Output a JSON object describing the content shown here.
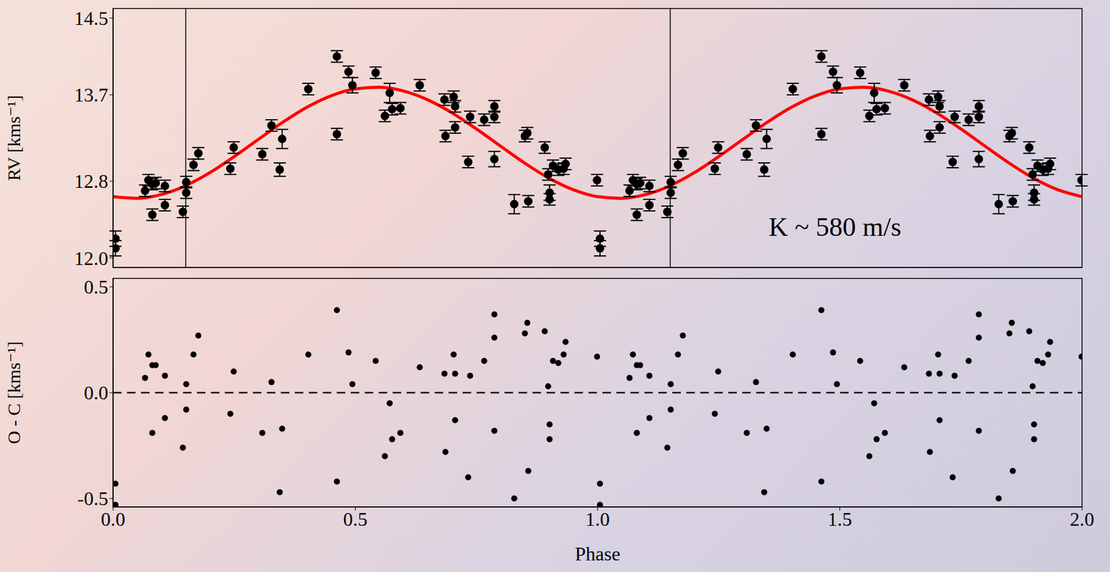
{
  "chart_data": [
    {
      "type": "scatter",
      "ylabel": "RV [kms⁻¹]",
      "xlim": [
        0,
        2
      ],
      "xticks": [
        {
          "value": 0,
          "label": "0.0"
        },
        0.5,
        {
          "value": 1,
          "label": "1.0"
        },
        1.5,
        {
          "value": 2,
          "label": "2.0"
        }
      ],
      "ylim": [
        11.9,
        14.6
      ],
      "yticks": [
        {
          "value": 12,
          "label": "12.0"
        },
        12.8,
        13.7,
        14.5
      ],
      "tick_labels": "y",
      "vlines": [
        0.15,
        1.15
      ],
      "annotations": [
        {
          "text": "K ~ 580 m/s",
          "x": 1.49,
          "y": 12.33
        }
      ],
      "series": [
        {
          "type": "line",
          "color": "#ff0000",
          "line_style": "solid",
          "x": [
            0,
            0.05,
            0.1,
            0.15,
            0.2,
            0.25,
            0.3,
            0.35,
            0.4,
            0.45,
            0.5,
            0.55,
            0.6,
            0.65,
            0.7,
            0.75,
            0.8,
            0.85,
            0.9,
            0.95,
            1,
            1.05,
            1.1,
            1.15,
            1.2,
            1.25,
            1.3,
            1.35,
            1.4,
            1.45,
            1.5,
            1.55,
            1.6,
            1.65,
            1.7,
            1.75,
            1.8,
            1.85,
            1.9,
            1.95,
            2
          ],
          "values": [
            12.638,
            12.621,
            12.661,
            12.753,
            12.889,
            13.056,
            13.236,
            13.413,
            13.57,
            13.69,
            13.762,
            13.779,
            13.739,
            13.647,
            13.511,
            13.344,
            13.164,
            12.987,
            12.83,
            12.71,
            12.638,
            12.621,
            12.661,
            12.753,
            12.889,
            13.056,
            13.236,
            13.413,
            13.57,
            13.69,
            13.762,
            13.779,
            13.739,
            13.647,
            13.511,
            13.344,
            13.164,
            12.987,
            12.83,
            12.71,
            12.638
          ]
        },
        {
          "type": "scatter",
          "color": "#000000",
          "marker": "circle",
          "x": [
            0.005,
            0.005,
            0.066,
            0.073,
            0.081,
            0.081,
            0.088,
            0.107,
            0.107,
            0.144,
            0.151,
            0.151,
            0.166,
            0.176,
            0.242,
            0.249,
            0.308,
            0.327,
            0.344,
            0.349,
            0.403,
            0.462,
            0.462,
            0.486,
            0.494,
            0.542,
            0.561,
            0.571,
            0.576,
            0.593,
            0.633,
            0.684,
            0.686,
            0.703,
            0.706,
            0.706,
            0.733,
            0.737,
            0.766,
            0.787,
            0.787,
            0.787,
            0.828,
            0.85,
            0.855,
            0.857,
            0.891,
            0.898,
            0.901,
            0.901,
            0.908,
            0.919,
            0.93,
            0.934,
            0.999,
            1.005,
            1.005,
            1.066,
            1.073,
            1.081,
            1.081,
            1.088,
            1.107,
            1.107,
            1.144,
            1.151,
            1.151,
            1.166,
            1.176,
            1.242,
            1.249,
            1.308,
            1.327,
            1.344,
            1.349,
            1.403,
            1.462,
            1.462,
            1.486,
            1.494,
            1.542,
            1.561,
            1.571,
            1.576,
            1.593,
            1.633,
            1.684,
            1.686,
            1.703,
            1.706,
            1.706,
            1.733,
            1.737,
            1.766,
            1.787,
            1.787,
            1.787,
            1.828,
            1.85,
            1.855,
            1.857,
            1.891,
            1.898,
            1.901,
            1.901,
            1.908,
            1.919,
            1.93,
            1.934,
            1.999
          ],
          "values": [
            12.2,
            12.1,
            12.7,
            12.81,
            12.77,
            12.45,
            12.78,
            12.75,
            12.55,
            12.48,
            12.68,
            12.79,
            12.97,
            13.09,
            12.93,
            13.15,
            13.08,
            13.38,
            12.92,
            13.24,
            13.76,
            14.1,
            13.29,
            13.94,
            13.8,
            13.93,
            13.48,
            13.72,
            13.55,
            13.56,
            13.8,
            13.65,
            13.27,
            13.68,
            13.58,
            13.36,
            13.0,
            13.47,
            13.44,
            13.58,
            13.47,
            13.03,
            12.56,
            13.27,
            13.3,
            12.59,
            13.15,
            12.87,
            12.68,
            12.61,
            12.96,
            12.92,
            12.93,
            12.98,
            12.81,
            12.2,
            12.1,
            12.7,
            12.81,
            12.77,
            12.45,
            12.78,
            12.75,
            12.55,
            12.48,
            12.68,
            12.79,
            12.97,
            13.09,
            12.93,
            13.15,
            13.08,
            13.38,
            12.92,
            13.24,
            13.76,
            14.1,
            13.29,
            13.94,
            13.8,
            13.93,
            13.48,
            13.72,
            13.55,
            13.56,
            13.8,
            13.65,
            13.27,
            13.68,
            13.58,
            13.36,
            13.0,
            13.47,
            13.44,
            13.58,
            13.47,
            13.03,
            12.56,
            13.27,
            13.3,
            12.59,
            13.15,
            12.87,
            12.68,
            12.61,
            12.96,
            12.92,
            12.93,
            12.98,
            12.81
          ],
          "errors": [
            0.08,
            0.08,
            0.06,
            0.06,
            0.06,
            0.06,
            0.06,
            0.06,
            0.06,
            0.06,
            0.06,
            0.06,
            0.06,
            0.06,
            0.06,
            0.06,
            0.06,
            0.06,
            0.07,
            0.1,
            0.06,
            0.06,
            0.06,
            0.06,
            0.08,
            0.06,
            0.06,
            0.1,
            0.06,
            0.06,
            0.06,
            0.06,
            0.06,
            0.06,
            0.06,
            0.06,
            0.06,
            0.06,
            0.06,
            0.06,
            0.06,
            0.08,
            0.1,
            0.06,
            0.06,
            0.06,
            0.06,
            0.06,
            0.08,
            0.06,
            0.06,
            0.06,
            0.06,
            0.06,
            0.06,
            0.08,
            0.08,
            0.06,
            0.06,
            0.06,
            0.06,
            0.06,
            0.06,
            0.06,
            0.06,
            0.06,
            0.06,
            0.06,
            0.06,
            0.06,
            0.06,
            0.06,
            0.06,
            0.07,
            0.1,
            0.06,
            0.06,
            0.06,
            0.06,
            0.08,
            0.06,
            0.06,
            0.1,
            0.06,
            0.06,
            0.06,
            0.06,
            0.06,
            0.06,
            0.06,
            0.06,
            0.06,
            0.06,
            0.06,
            0.06,
            0.06,
            0.08,
            0.1,
            0.06,
            0.06,
            0.06,
            0.06,
            0.06,
            0.08,
            0.06,
            0.06,
            0.06,
            0.06,
            0.06,
            0.06
          ]
        }
      ]
    },
    {
      "type": "scatter",
      "xlabel": "Phase",
      "ylabel": "O - C [kms⁻¹]",
      "xlim": [
        0,
        2
      ],
      "xticks": [
        {
          "value": 0,
          "label": "0.0"
        },
        0.5,
        {
          "value": 1,
          "label": "1.0"
        },
        1.5,
        {
          "value": 2,
          "label": "2.0"
        }
      ],
      "ylim": [
        -0.54,
        0.54
      ],
      "yticks": [
        -0.5,
        {
          "value": 0,
          "label": "0.0"
        },
        0.5
      ],
      "hline": 0,
      "series": [
        {
          "type": "scatter",
          "color": "#000000",
          "marker": "circle",
          "x": [
            0.005,
            0.005,
            0.066,
            0.073,
            0.081,
            0.081,
            0.088,
            0.107,
            0.107,
            0.144,
            0.151,
            0.151,
            0.166,
            0.176,
            0.242,
            0.249,
            0.308,
            0.327,
            0.344,
            0.349,
            0.403,
            0.462,
            0.462,
            0.486,
            0.494,
            0.542,
            0.561,
            0.571,
            0.576,
            0.593,
            0.633,
            0.684,
            0.686,
            0.703,
            0.706,
            0.706,
            0.733,
            0.737,
            0.766,
            0.787,
            0.787,
            0.787,
            0.828,
            0.85,
            0.855,
            0.857,
            0.891,
            0.898,
            0.901,
            0.901,
            0.908,
            0.919,
            0.93,
            0.934,
            0.999,
            1.005,
            1.005,
            1.066,
            1.073,
            1.081,
            1.081,
            1.088,
            1.107,
            1.107,
            1.144,
            1.151,
            1.151,
            1.166,
            1.176,
            1.242,
            1.249,
            1.308,
            1.327,
            1.344,
            1.349,
            1.403,
            1.462,
            1.462,
            1.486,
            1.494,
            1.542,
            1.561,
            1.571,
            1.576,
            1.593,
            1.633,
            1.684,
            1.686,
            1.703,
            1.706,
            1.706,
            1.733,
            1.737,
            1.766,
            1.787,
            1.787,
            1.787,
            1.828,
            1.85,
            1.855,
            1.857,
            1.891,
            1.898,
            1.901,
            1.901,
            1.908,
            1.919,
            1.93,
            1.934,
            1.999
          ],
          "values": [
            -0.43,
            -0.53,
            0.07,
            0.18,
            0.13,
            -0.19,
            0.13,
            0.08,
            -0.12,
            -0.26,
            -0.08,
            0.04,
            0.18,
            0.27,
            -0.1,
            0.1,
            -0.19,
            0.05,
            -0.47,
            -0.17,
            0.18,
            0.39,
            -0.42,
            0.19,
            0.04,
            0.15,
            -0.3,
            -0.05,
            -0.22,
            -0.19,
            0.12,
            0.09,
            -0.28,
            0.18,
            0.09,
            -0.13,
            -0.4,
            0.08,
            0.15,
            0.37,
            0.26,
            -0.18,
            -0.5,
            0.28,
            0.33,
            -0.37,
            0.29,
            0.03,
            -0.15,
            -0.22,
            0.15,
            0.14,
            0.18,
            0.24,
            0.17,
            -0.43,
            -0.53,
            0.07,
            0.18,
            0.13,
            -0.19,
            0.13,
            0.08,
            -0.12,
            -0.26,
            -0.08,
            0.04,
            0.18,
            0.27,
            -0.1,
            0.1,
            -0.19,
            0.05,
            -0.47,
            -0.17,
            0.18,
            0.39,
            -0.42,
            0.19,
            0.04,
            0.15,
            -0.3,
            -0.05,
            -0.22,
            -0.19,
            0.12,
            0.09,
            -0.28,
            0.18,
            0.09,
            -0.13,
            -0.4,
            0.08,
            0.15,
            0.37,
            0.26,
            -0.18,
            -0.5,
            0.28,
            0.33,
            -0.37,
            0.29,
            0.03,
            -0.15,
            -0.22,
            0.15,
            0.14,
            0.18,
            0.24,
            0.17
          ]
        }
      ]
    }
  ]
}
